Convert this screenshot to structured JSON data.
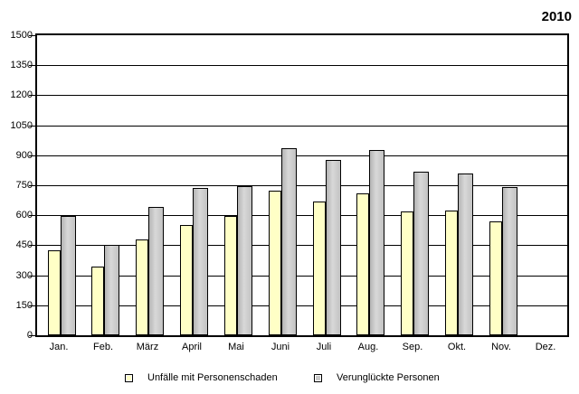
{
  "title": "2010",
  "chart_data": {
    "type": "bar",
    "title": "2010",
    "categories": [
      "Jan.",
      "Feb.",
      "März",
      "April",
      "Mai",
      "Juni",
      "Juli",
      "Aug.",
      "Sep.",
      "Okt.",
      "Nov.",
      "Dez."
    ],
    "series": [
      {
        "name": "Unfälle mit Personenschaden",
        "color": "#ffffc6",
        "values": [
          425,
          345,
          480,
          550,
          595,
          725,
          670,
          710,
          620,
          625,
          570,
          null
        ]
      },
      {
        "name": "Verunglückte Personen",
        "color": "#c9c9c9",
        "values": [
          595,
          450,
          640,
          735,
          745,
          935,
          875,
          925,
          820,
          810,
          740,
          null
        ]
      }
    ],
    "xlabel": "",
    "ylabel": "",
    "ylim": [
      0,
      1500
    ],
    "ytick_step": 150,
    "yticks": [
      "1500",
      "1350",
      "1200",
      "1050",
      "900",
      "750",
      "600",
      "450",
      "300",
      "150",
      "0"
    ],
    "grid": "horizontal-only",
    "legend_position": "bottom"
  },
  "legend": {
    "items": [
      {
        "label": "Unfälle mit Personenschaden",
        "color": "#ffffc6"
      },
      {
        "label": "Verunglückte Personen",
        "color": "#c9c9c9"
      }
    ]
  }
}
